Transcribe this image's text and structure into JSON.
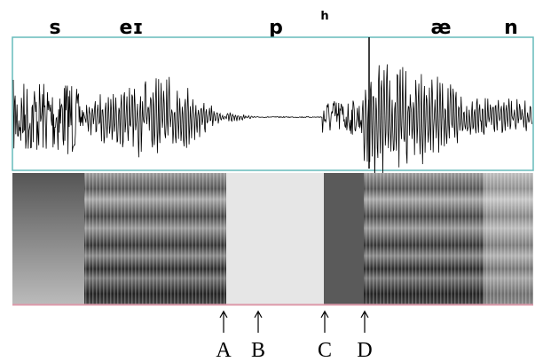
{
  "phonemes": [
    "s",
    "eɪ",
    "p",
    "h",
    "æ",
    "n"
  ],
  "markers": [
    "A",
    "B",
    "C",
    "D"
  ]
}
